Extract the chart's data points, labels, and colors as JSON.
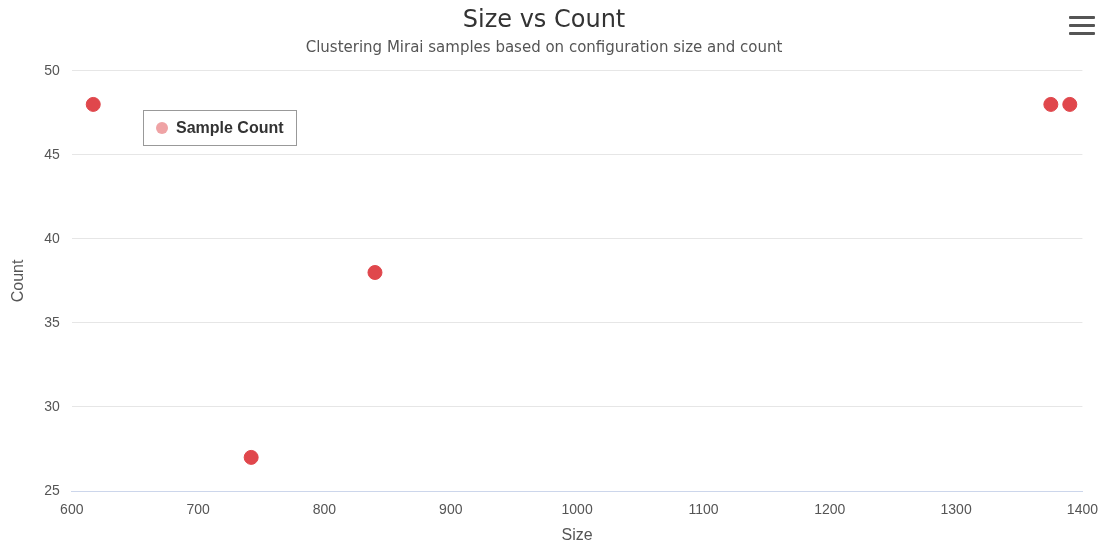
{
  "chart_data": {
    "type": "scatter",
    "title": "Size vs Count",
    "subtitle": "Clustering Mirai samples based on configuration size and count",
    "xlabel": "Size",
    "ylabel": "Count",
    "series": [
      {
        "name": "Sample Count",
        "color": "#e0474c",
        "x": [
          617,
          742,
          840,
          1375,
          1390
        ],
        "values": [
          48,
          27,
          38,
          48,
          48
        ]
      }
    ],
    "xlim": [
      600,
      1400
    ],
    "xticks": [
      600,
      700,
      800,
      900,
      1000,
      1100,
      1200,
      1300,
      1400
    ],
    "ylim": [
      25,
      50
    ],
    "yticks": [
      25,
      30,
      35,
      40,
      45,
      50
    ],
    "grid": "y",
    "legend": "top left",
    "marker": "circle"
  }
}
